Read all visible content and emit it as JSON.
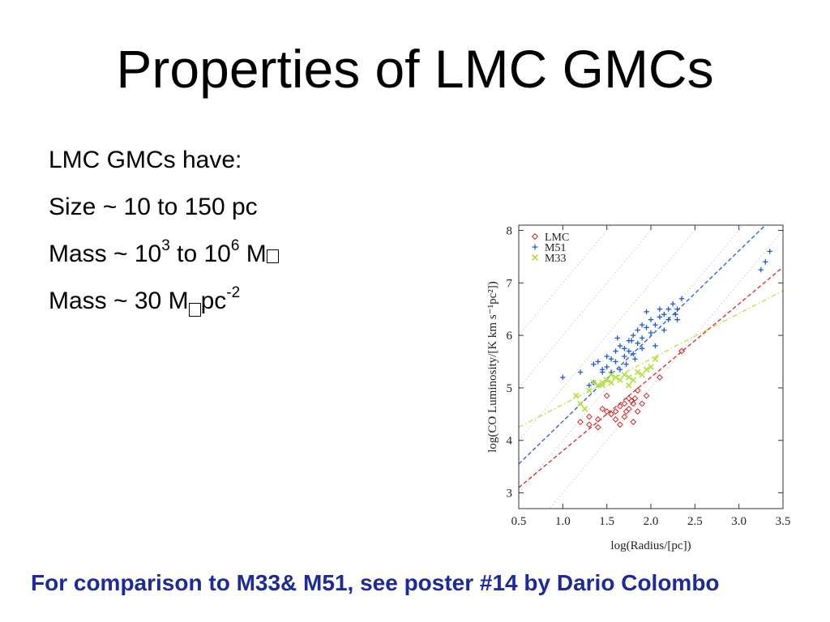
{
  "slide": {
    "title": "Properties of LMC GMCs",
    "line1": "LMC GMCs have:",
    "line2": "Size ~ 10 to 150 pc",
    "line3": {
      "prefix": "Mass ~ 10",
      "exp1": "3",
      "middle": " to 10",
      "exp2": "6",
      "suffix": " M"
    },
    "line4": {
      "prefix": "Mass ~ 30 M",
      "suffix": "pc",
      "exp": "-2"
    },
    "footer": "For comparison to M33& M51, see poster #14 by Dario Colombo"
  },
  "colors": {
    "LMC": "#d62728",
    "M51": "#1f5bd6",
    "M33": "#b8e04a",
    "guide": "#bbbbbb",
    "footer": "#1d2a9a"
  },
  "chart_data": {
    "type": "scatter",
    "xlabel": "log(Radius/[pc])",
    "ylabel": "log(CO Luminosity/[K km s⁻¹pc²])",
    "xlim": [
      0.5,
      3.5
    ],
    "ylim": [
      2.7,
      8.1
    ],
    "xticks": [
      "0.5",
      "1.0",
      "1.5",
      "2.0",
      "2.5",
      "3.0",
      "3.5"
    ],
    "yticks": [
      "3",
      "4",
      "5",
      "6",
      "7",
      "8"
    ],
    "legend": {
      "position": "top-left",
      "entries": [
        {
          "name": "LMC",
          "marker": "diamond"
        },
        {
          "name": "M51",
          "marker": "plus"
        },
        {
          "name": "M33",
          "marker": "x"
        }
      ]
    },
    "series": [
      {
        "name": "LMC",
        "marker": "diamond",
        "x": [
          1.2,
          1.3,
          1.4,
          1.45,
          1.5,
          1.55,
          1.6,
          1.65,
          1.7,
          1.72,
          1.75,
          1.78,
          1.8,
          1.82,
          1.85,
          1.9,
          1.95,
          1.6,
          1.7,
          1.8,
          1.5,
          1.75,
          1.65,
          1.85,
          1.4,
          2.1,
          2.35,
          1.3
        ],
        "y": [
          4.35,
          4.45,
          4.4,
          4.6,
          4.55,
          4.5,
          4.55,
          4.65,
          4.7,
          4.55,
          4.8,
          4.75,
          4.7,
          4.8,
          4.55,
          4.7,
          4.85,
          4.4,
          4.45,
          4.35,
          4.85,
          4.6,
          4.3,
          4.95,
          4.25,
          5.2,
          5.7,
          4.3
        ]
      },
      {
        "name": "M51",
        "marker": "plus",
        "x": [
          1.0,
          1.2,
          1.3,
          1.35,
          1.4,
          1.45,
          1.5,
          1.5,
          1.55,
          1.6,
          1.6,
          1.65,
          1.7,
          1.7,
          1.75,
          1.75,
          1.8,
          1.8,
          1.85,
          1.85,
          1.9,
          1.9,
          1.95,
          2.0,
          2.0,
          2.05,
          2.1,
          2.1,
          2.15,
          2.2,
          2.2,
          2.25,
          2.3,
          1.55,
          1.65,
          1.78,
          1.9,
          1.82,
          1.72,
          1.45,
          1.35,
          2.3,
          2.35,
          1.95,
          2.15,
          2.28,
          1.62,
          2.05,
          3.3,
          3.35,
          3.25
        ],
        "y": [
          5.2,
          5.3,
          5.05,
          5.45,
          5.5,
          5.3,
          5.6,
          5.4,
          5.55,
          5.7,
          5.5,
          5.8,
          5.6,
          5.75,
          5.9,
          5.7,
          5.65,
          6.0,
          5.85,
          6.1,
          5.95,
          6.2,
          6.15,
          6.3,
          6.05,
          6.2,
          6.5,
          6.35,
          6.4,
          6.5,
          6.3,
          6.6,
          6.5,
          5.3,
          5.35,
          5.9,
          5.75,
          5.55,
          5.45,
          5.35,
          5.1,
          6.3,
          6.7,
          6.45,
          6.1,
          6.4,
          5.95,
          5.8,
          7.4,
          7.6,
          7.25
        ]
      },
      {
        "name": "M33",
        "marker": "x",
        "x": [
          1.15,
          1.25,
          1.35,
          1.4,
          1.45,
          1.5,
          1.55,
          1.6,
          1.65,
          1.7,
          1.75,
          1.8,
          1.85,
          1.9,
          1.95,
          2.0,
          1.3,
          1.55,
          1.75,
          2.05,
          1.2,
          1.45
        ],
        "y": [
          4.85,
          4.6,
          5.1,
          5.05,
          5.1,
          5.15,
          5.1,
          5.2,
          5.15,
          5.25,
          5.2,
          5.15,
          5.3,
          5.25,
          5.35,
          5.4,
          4.95,
          5.25,
          5.05,
          5.55,
          4.7,
          5.05
        ]
      }
    ],
    "fits": [
      {
        "name": "M51",
        "x": [
          0.5,
          3.3
        ],
        "y": [
          3.55,
          8.1
        ]
      },
      {
        "name": "LMC",
        "x": [
          0.5,
          3.5
        ],
        "y": [
          3.1,
          7.3
        ]
      },
      {
        "name": "M33",
        "x": [
          0.5,
          3.5
        ],
        "y": [
          4.25,
          6.85
        ]
      }
    ]
  }
}
